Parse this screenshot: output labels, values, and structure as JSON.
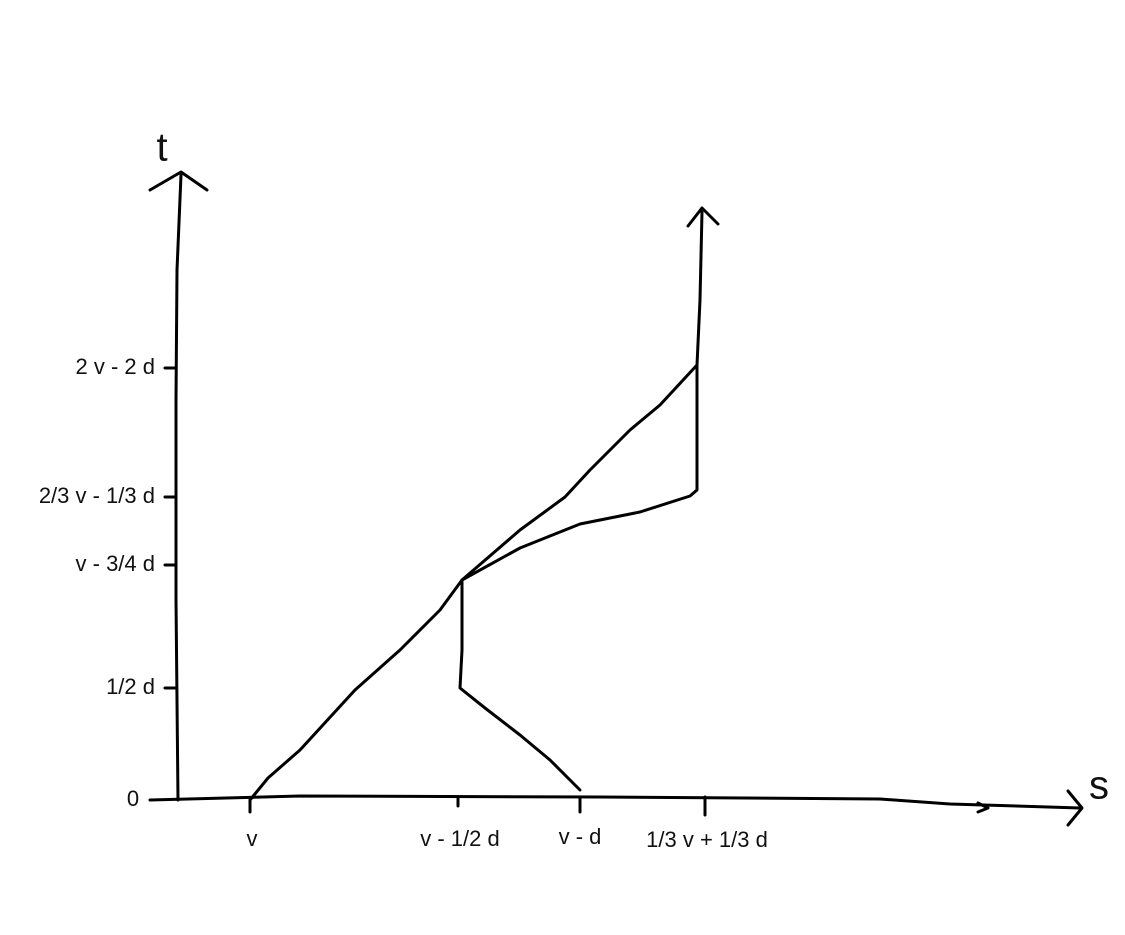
{
  "axes": {
    "y_label": "t",
    "x_label": "s"
  },
  "y_ticks": [
    "2 v - 2 d",
    "2/3 v - 1/3 d",
    "v - 3/4 d",
    "1/2 d",
    "0"
  ],
  "x_ticks": [
    "v",
    "v - 1/2 d",
    "v - d",
    "1/3 v + 1/3 d"
  ]
}
